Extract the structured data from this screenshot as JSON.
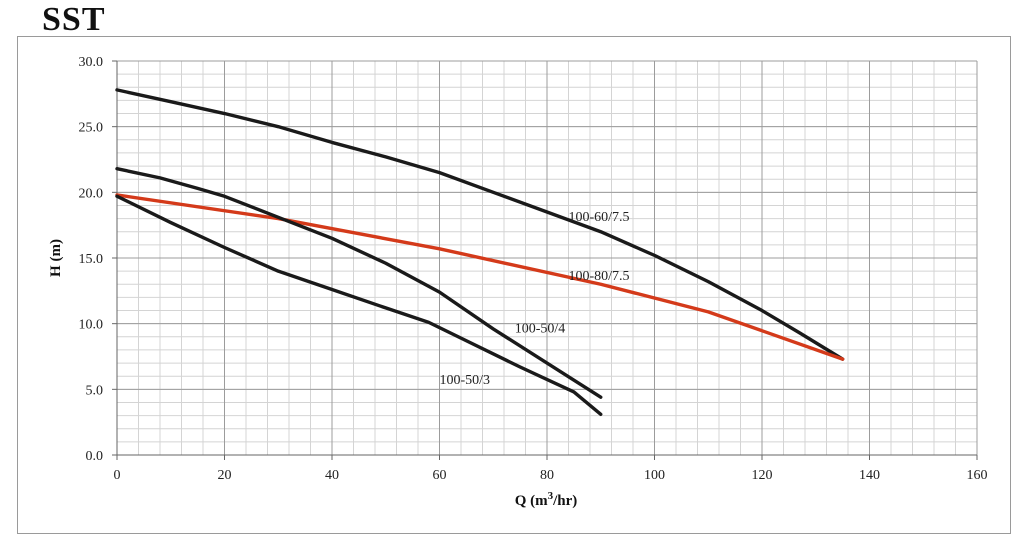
{
  "title": "SST",
  "chart_data": {
    "type": "line",
    "xlabel": "Q (m³/hr)",
    "xlabel_parts": {
      "prefix": "Q (m",
      "sup": "3",
      "suffix": "/hr)"
    },
    "ylabel": "H (m)",
    "xlim": [
      0,
      160
    ],
    "ylim": [
      0,
      30
    ],
    "xticks": [
      0,
      20,
      40,
      60,
      80,
      100,
      120,
      140,
      160
    ],
    "yticks": [
      0,
      5,
      10,
      15,
      20,
      25,
      30
    ],
    "ytick_labels": [
      "0.0",
      "5.0",
      "10.0",
      "15.0",
      "20.0",
      "25.0",
      "30.0"
    ],
    "grid": true,
    "minor_grid": {
      "x_step": 4,
      "y_step": 1
    },
    "series": [
      {
        "name": "100-60/7.5",
        "color": "#1a1a1a",
        "points": [
          [
            0,
            27.8
          ],
          [
            10,
            26.9
          ],
          [
            20,
            26.0
          ],
          [
            30,
            25.0
          ],
          [
            40,
            23.8
          ],
          [
            50,
            22.7
          ],
          [
            60,
            21.5
          ],
          [
            70,
            20.0
          ],
          [
            80,
            18.5
          ],
          [
            90,
            17.0
          ],
          [
            100,
            15.2
          ],
          [
            110,
            13.2
          ],
          [
            120,
            11.0
          ],
          [
            127,
            9.3
          ],
          [
            135,
            7.3
          ]
        ],
        "label_at": [
          84,
          18.2
        ]
      },
      {
        "name": "100-80/7.5",
        "color": "#d43a1a",
        "points": [
          [
            0,
            19.8
          ],
          [
            30,
            18.0
          ],
          [
            60,
            15.7
          ],
          [
            90,
            13.0
          ],
          [
            110,
            10.9
          ],
          [
            135,
            7.3
          ]
        ],
        "label_at": [
          84,
          13.7
        ]
      },
      {
        "name": "100-50/4",
        "color": "#1a1a1a",
        "points": [
          [
            0,
            21.8
          ],
          [
            8,
            21.1
          ],
          [
            15,
            20.3
          ],
          [
            20,
            19.7
          ],
          [
            30,
            18.1
          ],
          [
            40,
            16.5
          ],
          [
            50,
            14.6
          ],
          [
            60,
            12.4
          ],
          [
            70,
            9.6
          ],
          [
            80,
            7.0
          ],
          [
            90,
            4.4
          ]
        ],
        "label_at": [
          74,
          9.7
        ]
      },
      {
        "name": "100-50/3",
        "color": "#1a1a1a",
        "points": [
          [
            0,
            19.7
          ],
          [
            10,
            17.7
          ],
          [
            20,
            15.8
          ],
          [
            30,
            14.0
          ],
          [
            40,
            12.6
          ],
          [
            50,
            11.2
          ],
          [
            58,
            10.1
          ],
          [
            65,
            8.7
          ],
          [
            75,
            6.7
          ],
          [
            85,
            4.8
          ],
          [
            90,
            3.1
          ]
        ],
        "label_at": [
          60,
          5.8
        ]
      }
    ]
  }
}
